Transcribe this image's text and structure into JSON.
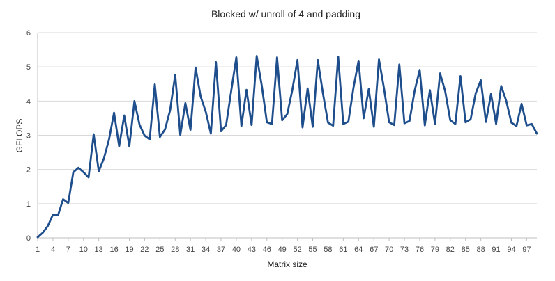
{
  "chart_data": {
    "type": "line",
    "title": "Blocked w/ unroll of 4 and padding",
    "xlabel": "Matrix size",
    "ylabel": "GFLOPS",
    "ylim": [
      0,
      6
    ],
    "yticks": [
      0,
      1,
      2,
      3,
      4,
      5,
      6
    ],
    "xlim": [
      1,
      99
    ],
    "xticks": [
      1,
      4,
      7,
      10,
      13,
      16,
      19,
      22,
      25,
      28,
      31,
      34,
      37,
      40,
      43,
      46,
      49,
      52,
      55,
      58,
      61,
      64,
      67,
      70,
      73,
      76,
      79,
      82,
      85,
      88,
      91,
      94,
      97
    ],
    "grid": "horizontal",
    "series_color": "#1f4e8c",
    "series": [
      {
        "x": [
          1,
          2,
          3,
          4,
          5,
          6,
          7,
          8,
          9,
          10,
          11,
          12,
          13,
          14,
          15,
          16,
          17,
          18,
          19,
          20,
          21,
          22,
          23,
          24,
          25,
          26,
          27,
          28,
          29,
          30,
          31,
          32,
          33,
          34,
          35,
          36,
          37,
          38,
          39,
          40,
          41,
          42,
          43,
          44,
          45,
          46,
          47,
          48,
          49,
          50,
          51,
          52,
          53,
          54,
          55,
          56,
          57,
          58,
          59,
          60,
          61,
          62,
          63,
          64,
          65,
          66,
          67,
          68,
          69,
          70,
          71,
          72,
          73,
          74,
          75,
          76,
          77,
          78,
          79,
          80,
          81,
          82,
          83,
          84,
          85,
          86,
          87,
          88,
          89,
          90,
          91,
          92,
          93,
          94,
          95,
          96,
          97,
          98,
          99
        ],
        "values": [
          0.02,
          0.15,
          0.35,
          0.68,
          0.66,
          1.13,
          1.02,
          1.92,
          2.05,
          1.92,
          1.77,
          3.03,
          1.95,
          2.32,
          2.87,
          3.66,
          2.68,
          3.58,
          2.68,
          4.0,
          3.31,
          2.99,
          2.88,
          4.49,
          2.95,
          3.17,
          3.73,
          4.77,
          3.01,
          3.94,
          3.16,
          4.98,
          4.13,
          3.69,
          3.05,
          5.14,
          3.12,
          3.3,
          4.3,
          5.28,
          3.27,
          4.33,
          3.3,
          5.32,
          4.45,
          3.38,
          3.33,
          5.28,
          3.44,
          3.62,
          4.33,
          5.2,
          3.23,
          4.37,
          3.25,
          5.2,
          4.23,
          3.37,
          3.28,
          5.3,
          3.33,
          3.4,
          4.39,
          5.18,
          3.5,
          4.35,
          3.25,
          5.22,
          4.36,
          3.38,
          3.3,
          5.07,
          3.35,
          3.42,
          4.3,
          4.91,
          3.29,
          4.32,
          3.33,
          4.81,
          4.29,
          3.44,
          3.33,
          4.73,
          3.38,
          3.47,
          4.23,
          4.61,
          3.39,
          4.21,
          3.33,
          4.44,
          4.0,
          3.37,
          3.27,
          3.92,
          3.29,
          3.33,
          3.05
        ]
      }
    ]
  }
}
